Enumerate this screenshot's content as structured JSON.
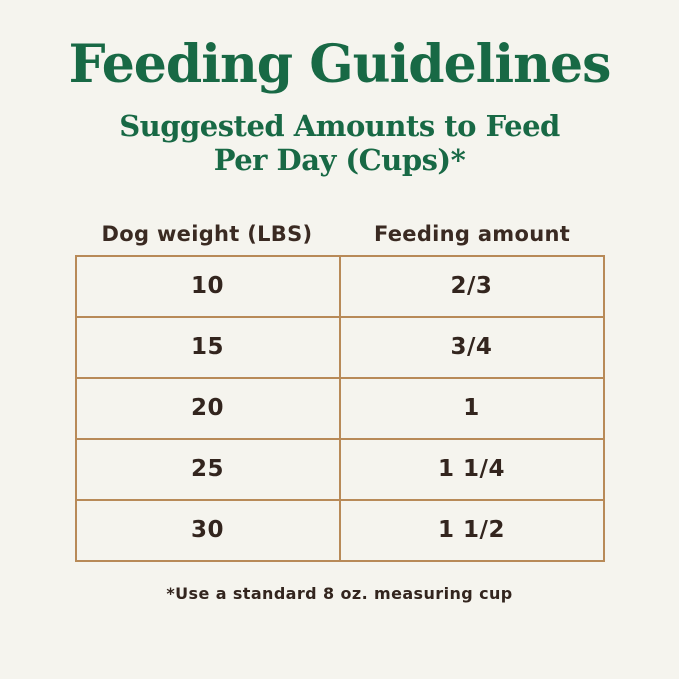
{
  "page": {
    "title": "Feeding Guidelines",
    "subtitle_line1": "Suggested Amounts to Feed",
    "subtitle_line2": "Per Day (Cups)*",
    "footnote": "*Use a standard 8 oz. measuring cup"
  },
  "colors": {
    "background": "#f5f4ee",
    "heading_green": "#186945",
    "table_border_tan": "#b88a58",
    "text_dark_brown": "#33251e"
  },
  "table": {
    "headers": [
      "Dog weight (LBS)",
      "Feeding amount"
    ],
    "rows": [
      {
        "weight": "10",
        "amount": "2/3"
      },
      {
        "weight": "15",
        "amount": "3/4"
      },
      {
        "weight": "20",
        "amount": "1"
      },
      {
        "weight": "25",
        "amount": "1 1/4"
      },
      {
        "weight": "30",
        "amount": "1 1/2"
      }
    ]
  }
}
